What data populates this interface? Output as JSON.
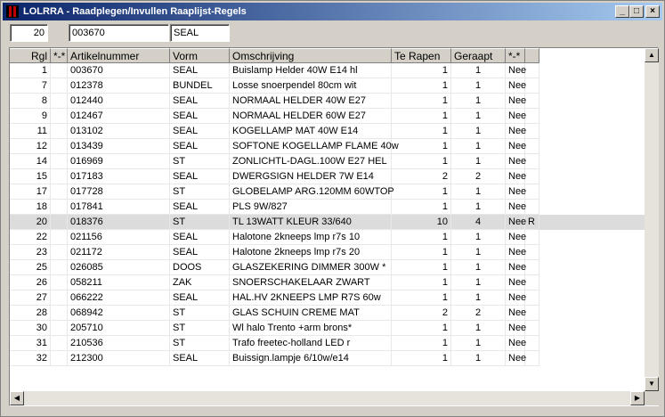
{
  "window": {
    "title": "LOLRRA - Raadplegen/Invullen Raaplijst-Regels",
    "minimize_glyph": "_",
    "maximize_glyph": "□",
    "close_glyph": "×"
  },
  "filters": {
    "regel": "20",
    "artikelnummer": "003670",
    "vorm": "SEAL"
  },
  "columns": [
    "Rgl",
    "*-*",
    "Artikelnummer",
    "Vorm",
    "Omschrijving",
    "Te Rapen",
    "Geraapt",
    "*-*",
    ""
  ],
  "rows": [
    {
      "rgl": "1",
      "flag": "",
      "art": "003670",
      "vorm": "SEAL",
      "oms": "Buislamp Helder 40W E14 hl",
      "te": "1",
      "ger": "1",
      "st": "Nee",
      "x": ""
    },
    {
      "rgl": "7",
      "flag": "",
      "art": "012378",
      "vorm": "BUNDEL",
      "oms": "Losse snoerpendel 80cm  wit",
      "te": "1",
      "ger": "1",
      "st": "Nee",
      "x": ""
    },
    {
      "rgl": "8",
      "flag": "",
      "art": "012440",
      "vorm": "SEAL",
      "oms": "NORMAAL HELDER 40W E27",
      "te": "1",
      "ger": "1",
      "st": "Nee",
      "x": ""
    },
    {
      "rgl": "9",
      "flag": "",
      "art": "012467",
      "vorm": "SEAL",
      "oms": "NORMAAL HELDER 60W E27",
      "te": "1",
      "ger": "1",
      "st": "Nee",
      "x": ""
    },
    {
      "rgl": "11",
      "flag": "",
      "art": "013102",
      "vorm": "SEAL",
      "oms": "KOGELLAMP MAT 40W E14",
      "te": "1",
      "ger": "1",
      "st": "Nee",
      "x": ""
    },
    {
      "rgl": "12",
      "flag": "",
      "art": "013439",
      "vorm": "SEAL",
      "oms": "SOFTONE KOGELLAMP FLAME 40w",
      "te": "1",
      "ger": "1",
      "st": "Nee",
      "x": ""
    },
    {
      "rgl": "14",
      "flag": "",
      "art": "016969",
      "vorm": "ST",
      "oms": "ZONLICHTL-DAGL.100W E27 HEL",
      "te": "1",
      "ger": "1",
      "st": "Nee",
      "x": ""
    },
    {
      "rgl": "15",
      "flag": "",
      "art": "017183",
      "vorm": "SEAL",
      "oms": "DWERGSIGN HELDER 7W E14",
      "te": "2",
      "ger": "2",
      "st": "Nee",
      "x": ""
    },
    {
      "rgl": "17",
      "flag": "",
      "art": "017728",
      "vorm": "ST",
      "oms": "GLOBELAMP ARG.120MM 60WTOP",
      "te": "1",
      "ger": "1",
      "st": "Nee",
      "x": ""
    },
    {
      "rgl": "18",
      "flag": "",
      "art": "017841",
      "vorm": "SEAL",
      "oms": "PLS 9W/827",
      "te": "1",
      "ger": "1",
      "st": "Nee",
      "x": ""
    },
    {
      "rgl": "20",
      "flag": "",
      "art": "018376",
      "vorm": "ST",
      "oms": "TL 13WATT KLEUR 33/640",
      "te": "10",
      "ger": "4",
      "st": "Nee",
      "x": "R",
      "selected": true
    },
    {
      "rgl": "22",
      "flag": "",
      "art": "021156",
      "vorm": "SEAL",
      "oms": "Halotone 2kneeps lmp r7s 10",
      "te": "1",
      "ger": "1",
      "st": "Nee",
      "x": ""
    },
    {
      "rgl": "23",
      "flag": "",
      "art": "021172",
      "vorm": "SEAL",
      "oms": "Halotone 2kneeps lmp r7s 20",
      "te": "1",
      "ger": "1",
      "st": "Nee",
      "x": ""
    },
    {
      "rgl": "25",
      "flag": "",
      "art": "026085",
      "vorm": "DOOS",
      "oms": "GLASZEKERING DIMMER 300W *",
      "te": "1",
      "ger": "1",
      "st": "Nee",
      "x": ""
    },
    {
      "rgl": "26",
      "flag": "",
      "art": "058211",
      "vorm": "ZAK",
      "oms": "SNOERSCHAKELAAR      ZWART",
      "te": "1",
      "ger": "1",
      "st": "Nee",
      "x": ""
    },
    {
      "rgl": "27",
      "flag": "",
      "art": "066222",
      "vorm": "SEAL",
      "oms": "HAL.HV 2KNEEPS LMP R7S 60w",
      "te": "1",
      "ger": "1",
      "st": "Nee",
      "x": ""
    },
    {
      "rgl": "28",
      "flag": "",
      "art": "068942",
      "vorm": "ST",
      "oms": "GLAS SCHUIN CREME MAT",
      "te": "2",
      "ger": "2",
      "st": "Nee",
      "x": ""
    },
    {
      "rgl": "30",
      "flag": "",
      "art": "205710",
      "vorm": "ST",
      "oms": "Wl halo Trento +arm brons*",
      "te": "1",
      "ger": "1",
      "st": "Nee",
      "x": ""
    },
    {
      "rgl": "31",
      "flag": "",
      "art": "210536",
      "vorm": "ST",
      "oms": "Trafo freetec-holland LED r",
      "te": "1",
      "ger": "1",
      "st": "Nee",
      "x": ""
    },
    {
      "rgl": "32",
      "flag": "",
      "art": "212300",
      "vorm": "SEAL",
      "oms": "Buissign.lampje  6/10w/e14",
      "te": "1",
      "ger": "1",
      "st": "Nee",
      "x": ""
    }
  ],
  "scrollbar": {
    "up": "▲",
    "down": "▼",
    "left": "◀",
    "right": "▶"
  },
  "colors": {
    "title_start": "#0a246a",
    "title_end": "#a6caf0",
    "selected_row": "#dcdcdc"
  }
}
